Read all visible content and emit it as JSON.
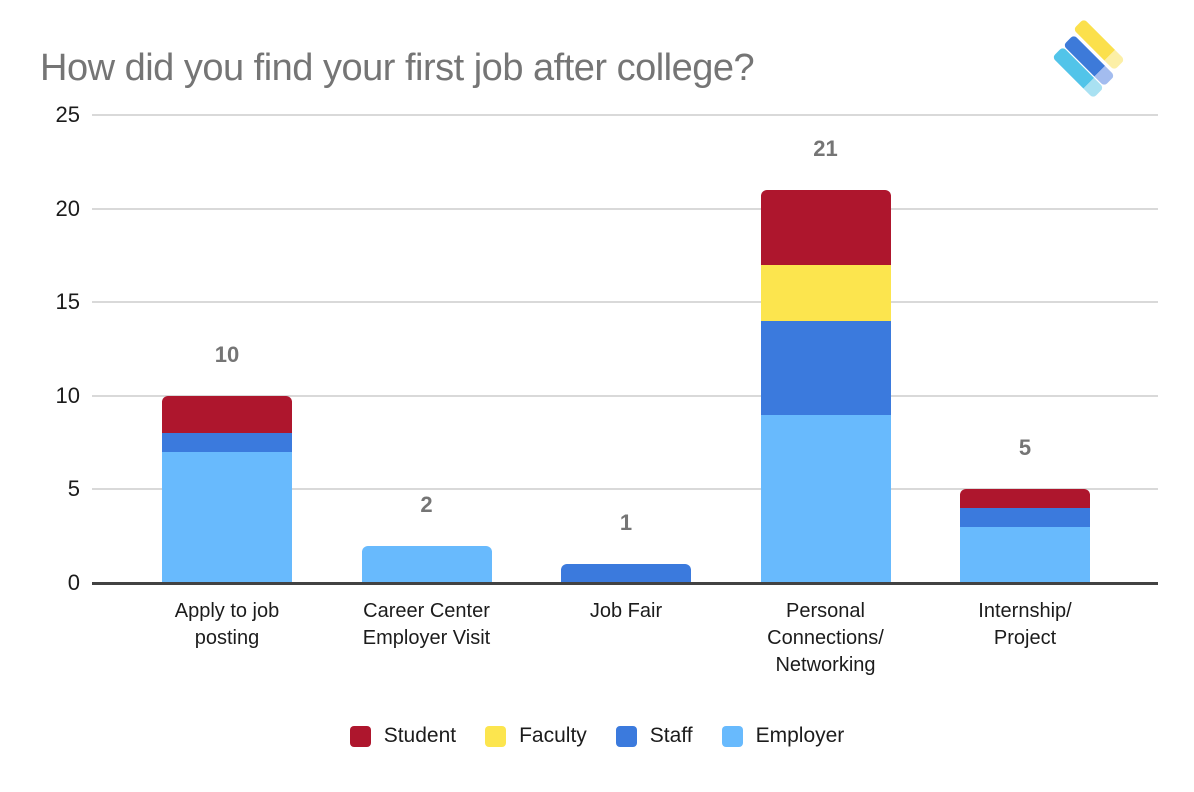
{
  "title": "How did you find your first job after college?",
  "chart_data": {
    "type": "bar",
    "subtype": "stacked",
    "title": "How did you find your first job after college?",
    "categories": [
      "Apply to job posting",
      "Career Center Employer Visit",
      "Job Fair",
      "Personal Connections/Networking",
      "Internship/Project"
    ],
    "category_lines": [
      [
        "Apply to job",
        "posting"
      ],
      [
        "Career Center",
        "Employer Visit"
      ],
      [
        "Job Fair"
      ],
      [
        "Personal",
        "Connections/",
        "Networking"
      ],
      [
        "Internship/",
        "Project"
      ]
    ],
    "series": [
      {
        "name": "Student",
        "color": "#AE162D",
        "values": [
          2,
          0,
          0,
          4,
          1
        ]
      },
      {
        "name": "Faculty",
        "color": "#FCE54E",
        "values": [
          0,
          0,
          0,
          3,
          0
        ]
      },
      {
        "name": "Staff",
        "color": "#3B7ADD",
        "values": [
          1,
          0,
          1,
          5,
          1
        ]
      },
      {
        "name": "Employer",
        "color": "#68BAFD",
        "values": [
          7,
          2,
          0,
          9,
          3
        ]
      }
    ],
    "stack_order_bottom_to_top": [
      "Employer",
      "Staff",
      "Faculty",
      "Student"
    ],
    "totals": [
      10,
      2,
      1,
      21,
      5
    ],
    "xlabel": "",
    "ylabel": "",
    "y_ticks": [
      0,
      5,
      10,
      15,
      20,
      25
    ],
    "ylim": [
      0,
      25
    ],
    "grid": true,
    "legend_position": "bottom"
  },
  "legend": {
    "items": [
      {
        "label": "Student",
        "color": "#AE162D"
      },
      {
        "label": "Faculty",
        "color": "#FCE54E"
      },
      {
        "label": "Staff",
        "color": "#3B7ADD"
      },
      {
        "label": "Employer",
        "color": "#68BAFD"
      }
    ]
  },
  "colors": {
    "title_text": "#757575",
    "value_label": "#757575",
    "gridline": "#d9d9d9",
    "axis_line": "#424242",
    "tick_text": "#1b1b1b"
  },
  "logo": {
    "stripes": [
      {
        "name": "light-blue-stripe",
        "color": "#52C4E9",
        "tail": "#A9E1F2"
      },
      {
        "name": "blue-stripe",
        "color": "#3D7AD9",
        "tail": "#A3BCEF"
      },
      {
        "name": "yellow-stripe",
        "color": "#FBE04C",
        "tail": "#FCEFA6"
      }
    ]
  }
}
